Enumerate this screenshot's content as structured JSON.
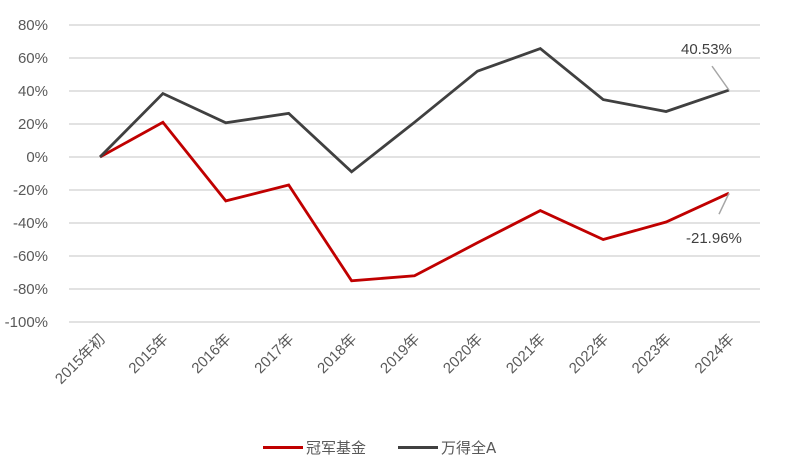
{
  "chart_data": {
    "type": "line",
    "title": "",
    "xlabel": "",
    "ylabel": "",
    "categories": [
      "2015年初",
      "2015年",
      "2016年",
      "2017年",
      "2018年",
      "2019年",
      "2020年",
      "2021年",
      "2022年",
      "2023年",
      "2024年"
    ],
    "series": [
      {
        "name": "冠军基金",
        "color": "#c00000",
        "values": [
          0,
          21,
          -26.6,
          -17,
          -75,
          -72,
          -52,
          -32.5,
          -50,
          -39.4,
          -21.96
        ]
      },
      {
        "name": "万得全A",
        "color": "#404040",
        "values": [
          0,
          38.5,
          20.7,
          26.4,
          -9,
          21,
          52,
          65.7,
          34.8,
          27.6,
          40.53
        ]
      }
    ],
    "ylim": [
      -100,
      80
    ],
    "yticks": [
      80,
      60,
      40,
      20,
      0,
      -20,
      -40,
      -60,
      -80,
      -100
    ],
    "ytick_labels": [
      "80%",
      "60%",
      "40%",
      "20%",
      "0%",
      "-20%",
      "-40%",
      "-60%",
      "-80%",
      "-100%"
    ],
    "grid": true,
    "legend_position": "bottom",
    "annotations": [
      {
        "series": "万得全A",
        "point": "2024年",
        "text": "40.53%"
      },
      {
        "series": "冠军基金",
        "point": "2024年",
        "text": "-21.96%"
      }
    ]
  },
  "legend": {
    "items": [
      {
        "label": "冠军基金",
        "color": "#c00000"
      },
      {
        "label": "万得全A",
        "color": "#404040"
      }
    ]
  }
}
